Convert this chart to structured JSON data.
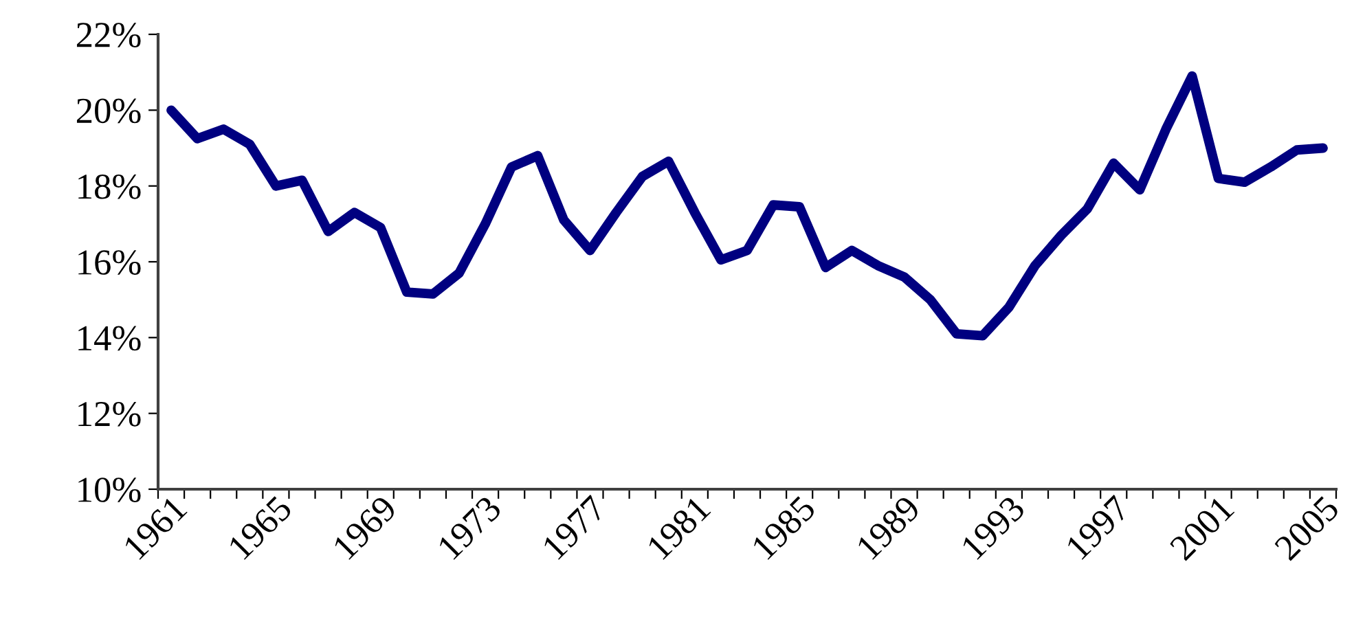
{
  "chart_data": {
    "type": "line",
    "categories": [
      "1961",
      null,
      null,
      null,
      "1965",
      null,
      null,
      null,
      "1969",
      null,
      null,
      null,
      "1973",
      null,
      null,
      null,
      "1977",
      null,
      null,
      null,
      "1981",
      null,
      null,
      null,
      "1985",
      null,
      null,
      null,
      "1989",
      null,
      null,
      null,
      "1993",
      null,
      null,
      null,
      "1997",
      null,
      null,
      null,
      "2001",
      null,
      null,
      null,
      "2005"
    ],
    "series": [
      {
        "color": "#000080",
        "values": [
          20.0,
          19.25,
          19.5,
          19.1,
          18.0,
          18.15,
          16.8,
          17.3,
          16.9,
          15.2,
          15.15,
          15.7,
          17.0,
          18.5,
          18.8,
          17.1,
          16.3,
          17.3,
          18.25,
          18.65,
          17.3,
          16.05,
          16.3,
          17.5,
          17.45,
          15.85,
          16.3,
          15.9,
          15.6,
          15.0,
          14.1,
          14.05,
          14.8,
          15.9,
          16.7,
          17.4,
          18.6,
          17.9,
          19.5,
          20.9,
          18.2,
          18.1,
          18.5,
          18.95,
          19.0
        ]
      }
    ],
    "ylim": [
      10,
      22
    ],
    "yticks": [
      {
        "value": 10,
        "label": "10%"
      },
      {
        "value": 12,
        "label": "12%"
      },
      {
        "value": 14,
        "label": "14%"
      },
      {
        "value": 16,
        "label": "16%"
      },
      {
        "value": 18,
        "label": "18%"
      },
      {
        "value": 20,
        "label": "20%"
      },
      {
        "value": 22,
        "label": "22%"
      }
    ],
    "grid": false,
    "marker": "none",
    "line_style": "solid"
  }
}
